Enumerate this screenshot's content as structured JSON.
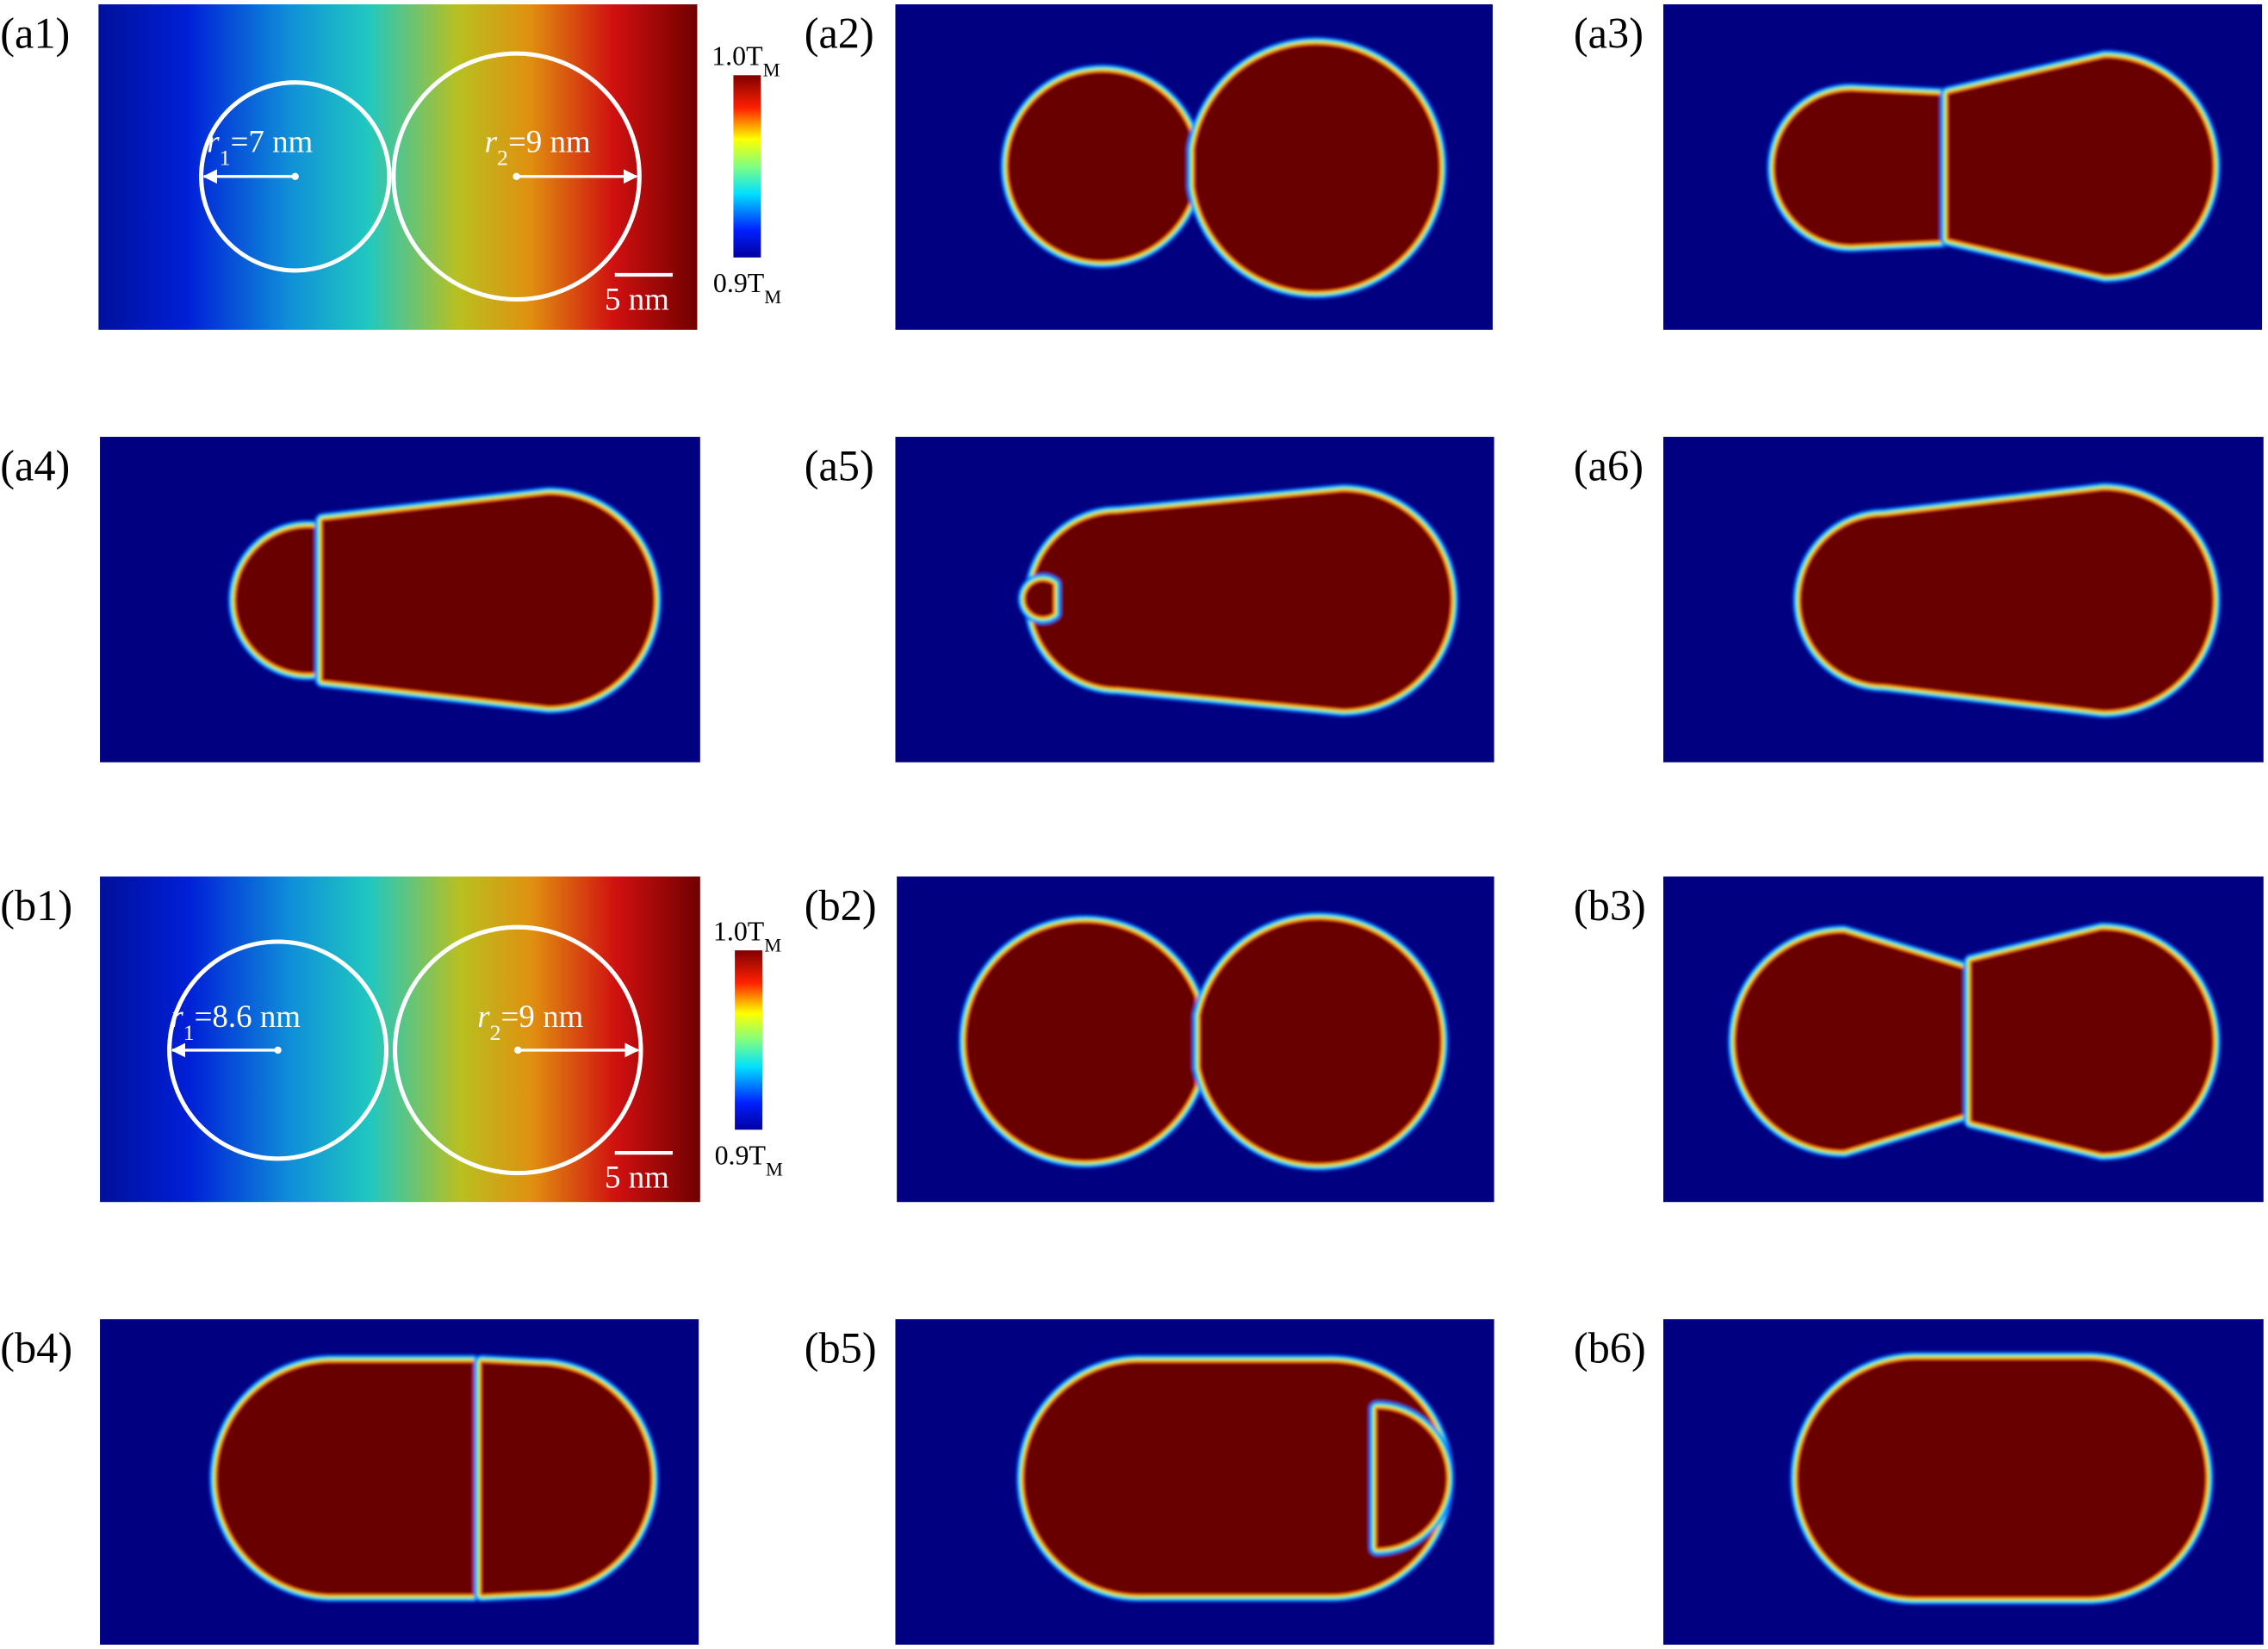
{
  "panels": [
    {
      "label": "(a1)",
      "r1": {
        "symbol": "r",
        "sub": "1",
        "text": "=7 nm"
      },
      "r2": {
        "symbol": "r",
        "sub": "2",
        "text": "=9 nm"
      },
      "scale": "5 nm",
      "colorbar": {
        "max": {
          "text": "1.0T",
          "sub": "M"
        },
        "min": {
          "text": "0.9T",
          "sub": "M"
        }
      }
    },
    {
      "label": "(a2)"
    },
    {
      "label": "(a3)"
    },
    {
      "label": "(a4)"
    },
    {
      "label": "(a5)"
    },
    {
      "label": "(a6)"
    },
    {
      "label": "(b1)",
      "r1": {
        "symbol": "r",
        "sub": "1",
        "text": "=8.6 nm"
      },
      "r2": {
        "symbol": "r",
        "sub": "2",
        "text": "=9 nm"
      },
      "scale": "5 nm",
      "colorbar": {
        "max": {
          "text": "1.0T",
          "sub": "M"
        },
        "min": {
          "text": "0.9T",
          "sub": "M"
        }
      }
    },
    {
      "label": "(b2)"
    },
    {
      "label": "(b3)"
    },
    {
      "label": "(b4)"
    },
    {
      "label": "(b5)"
    },
    {
      "label": "(b6)"
    }
  ]
}
